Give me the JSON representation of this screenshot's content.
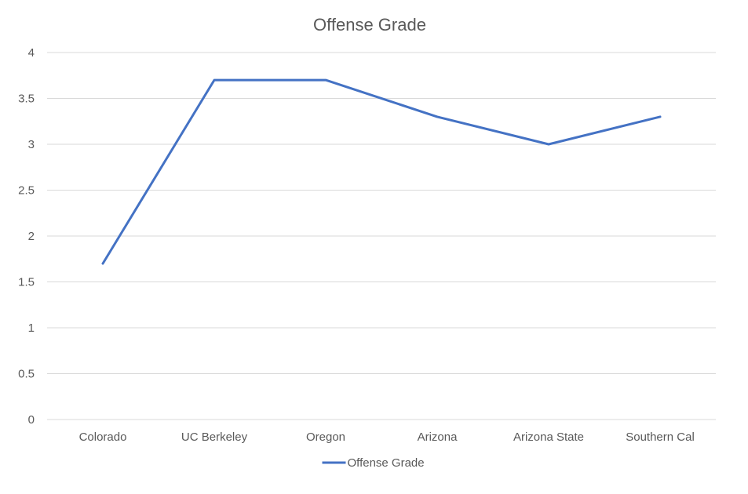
{
  "chart_data": {
    "type": "line",
    "title": "Offense Grade",
    "xlabel": "",
    "ylabel": "",
    "categories": [
      "Colorado",
      "UC Berkeley",
      "Oregon",
      "Arizona",
      "Arizona State",
      "Southern Cal"
    ],
    "series": [
      {
        "name": "Offense Grade",
        "values": [
          1.7,
          3.7,
          3.7,
          3.3,
          3.0,
          3.3
        ],
        "color": "#4472c4"
      }
    ],
    "ylim": [
      0,
      4
    ],
    "yticks": [
      0,
      0.5,
      1,
      1.5,
      2,
      2.5,
      3,
      3.5,
      4
    ],
    "ytick_labels": [
      "0",
      "0.5",
      "1",
      "1.5",
      "2",
      "2.5",
      "3",
      "3.5",
      "4"
    ],
    "grid": true,
    "legend_position": "bottom"
  }
}
